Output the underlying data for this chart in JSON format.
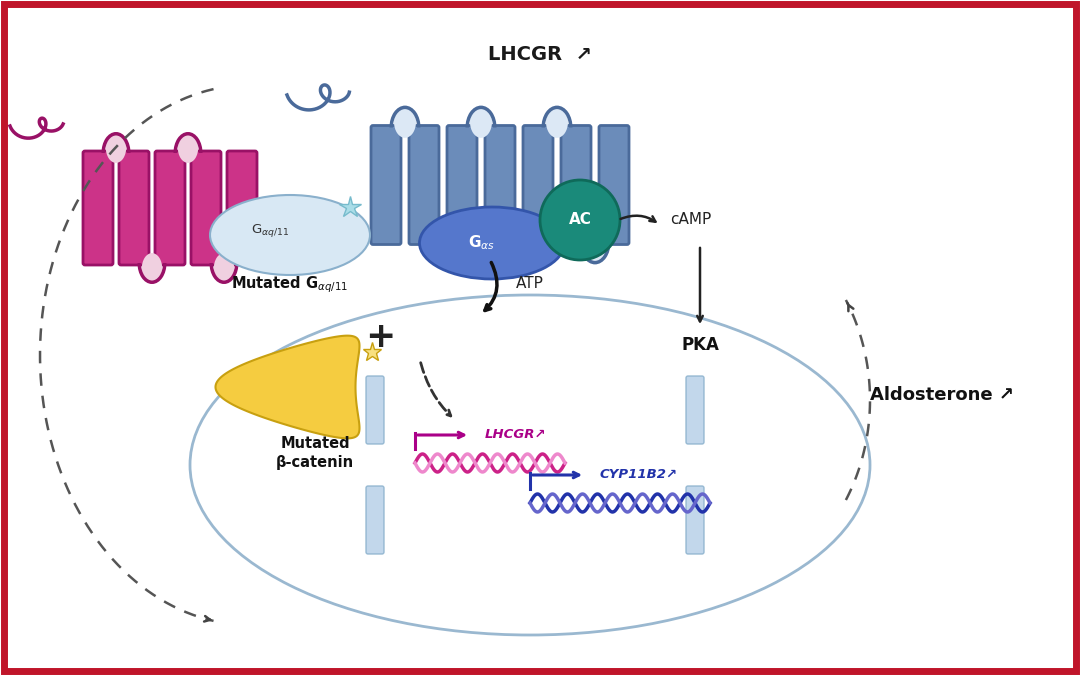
{
  "bg_color": "#ffffff",
  "border_color": "#c0152a",
  "border_width": 8,
  "membrane_fill": "#dce8f5",
  "membrane_edge": "#9ab8d0",
  "lhcgr_receptor_color": "#6b8cba",
  "lhcgr_receptor_edge": "#4a6a9a",
  "lhcgr_loop_color": "#dce8f5",
  "gaq_receptor_color": "#cc3388",
  "gaq_receptor_edge": "#991166",
  "gaq_loop_color": "#f0d0e0",
  "gas_color": "#5577cc",
  "gas_edge": "#3355aa",
  "ac_color": "#1a8a7a",
  "ac_edge": "#0f6a5a",
  "gaq_bubble_fill": "#d8e8f4",
  "gaq_bubble_edge": "#8ab0cc",
  "star_color": "#aadde8",
  "star_edge": "#77bbcc",
  "beta_fill": "#f5cc40",
  "beta_edge": "#c8a010",
  "beta_star_color": "#f8e080",
  "beta_star_edge": "#c8a010",
  "nucleus_edge": "#9ab8d0",
  "nucleus_fill": "none",
  "channel_fill": "#b8d0e8",
  "channel_edge": "#8ab0cc",
  "dna_lhcgr_color1": "#cc2288",
  "dna_lhcgr_color2": "#ee88cc",
  "dna_cyp_color1": "#2233aa",
  "dna_cyp_color2": "#6666cc",
  "lhcgr_label": "LHCGR",
  "gas_label": "G$_{\\alpha s}$",
  "ac_label": "AC",
  "atp_label": "ATP",
  "camp_label": "cAMP",
  "pka_label": "PKA",
  "mutated_gaq_line1": "Mutated G",
  "mutated_gaq_sub": "\\u03b1q/11",
  "plus_label": "+",
  "mutated_bcatenin_label1": "Mutated",
  "mutated_bcatenin_label2": "\\u03b2-catenin",
  "lhcgr_gene_label": "LHCGR",
  "cyp11b2_gene_label": "CYP11B2",
  "aldosterone_label": "Aldosterone",
  "up_arrow": "\\u2197"
}
